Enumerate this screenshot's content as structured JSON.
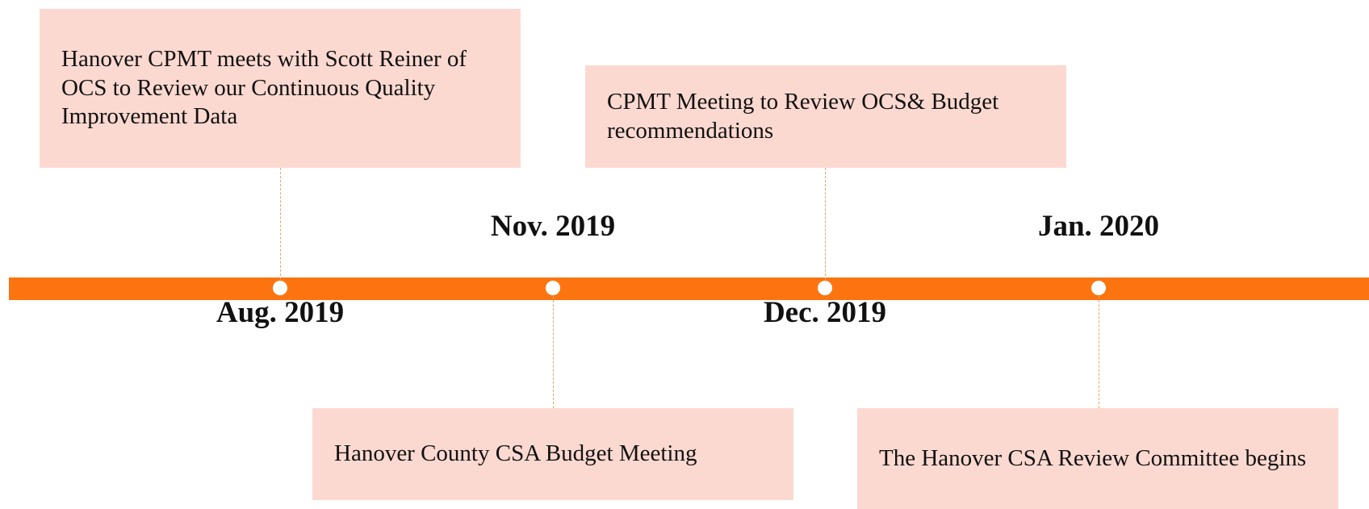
{
  "events": [
    {
      "date": "Aug. 2019",
      "text": "Hanover CPMT meets with Scott Reiner of OCS to Review our Continuous Quality Improvement Data"
    },
    {
      "date": "Nov. 2019",
      "text": "Hanover County CSA Budget Meeting"
    },
    {
      "date": "Dec. 2019",
      "text": "CPMT Meeting to Review OCS& Budget recommendations"
    },
    {
      "date": "Jan. 2020",
      "text": "The Hanover CSA Review Committee begins"
    }
  ]
}
